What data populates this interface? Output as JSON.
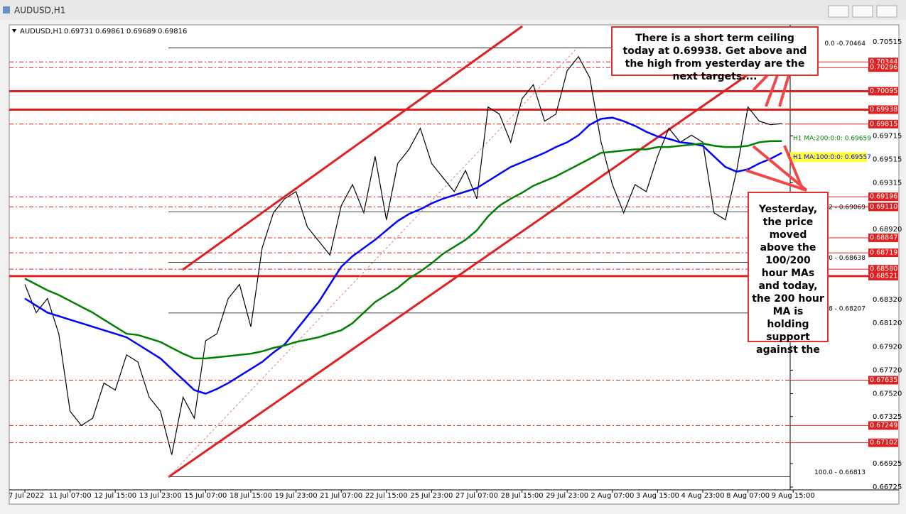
{
  "chart_data": {
    "type": "line",
    "window_title": "AUDUSD,H1",
    "symbol": "AUDUSD,H1",
    "ohlc": [
      0.69731,
      0.69861,
      0.69689,
      0.69816
    ],
    "categories": [
      "7 Jul 2022",
      null,
      null,
      null,
      "11 Jul 07:00",
      null,
      null,
      null,
      "12 Jul 15:00",
      null,
      null,
      null,
      "13 Jul 23:00",
      null,
      null,
      null,
      "15 Jul 07:00",
      null,
      null,
      null,
      "18 Jul 15:00",
      null,
      null,
      null,
      "19 Jul 23:00",
      null,
      null,
      null,
      "21 Jul 07:00",
      null,
      null,
      null,
      "22 Jul 15:00",
      null,
      null,
      null,
      "25 Jul 23:00",
      null,
      null,
      null,
      "27 Jul 07:00",
      null,
      null,
      null,
      "28 Jul 15:00",
      null,
      null,
      null,
      "29 Jul 23:00",
      null,
      null,
      null,
      "2 Aug 07:00",
      null,
      null,
      null,
      "3 Aug 15:00",
      null,
      null,
      null,
      "4 Aug 23:00",
      null,
      null,
      null,
      "8 Aug 07:00",
      null,
      null,
      null,
      "9 Aug 15:00",
      null
    ],
    "series": [
      {
        "name": "AUDUSD,H1",
        "color": "#000000",
        "values": [
          0.6845,
          0.6821,
          0.6833,
          0.6803,
          0.6737,
          0.6725,
          0.6731,
          0.6761,
          0.6755,
          0.6785,
          0.6779,
          0.6749,
          0.6737,
          0.67,
          0.6749,
          0.6731,
          0.6797,
          0.6803,
          0.6833,
          0.6845,
          0.6809,
          0.6876,
          0.6906,
          0.6918,
          0.6924,
          0.6894,
          0.6882,
          0.687,
          0.6912,
          0.693,
          0.6906,
          0.6954,
          0.69,
          0.6948,
          0.696,
          0.6978,
          0.6948,
          0.6936,
          0.6924,
          0.6942,
          0.6918,
          0.6996,
          0.699,
          0.6966,
          0.7003,
          0.7015,
          0.6984,
          0.699,
          0.7027,
          0.7039,
          0.7021,
          0.6966,
          0.693,
          0.6906,
          0.693,
          0.6924,
          0.6954,
          0.6978,
          0.6966,
          0.6972,
          0.6966,
          0.6906,
          0.69,
          0.6942,
          0.6996,
          0.6984,
          0.6981,
          0.6982,
          null,
          null
        ]
      },
      {
        "name": "H1 MA:100:0:0: 0.69557",
        "color": "#0000ff",
        "values": [
          0.6833,
          0.6827,
          0.6821,
          0.6818,
          0.6815,
          0.6812,
          0.6809,
          0.6806,
          0.6803,
          0.68,
          0.6794,
          0.6788,
          0.6782,
          0.6773,
          0.6764,
          0.6755,
          0.6752,
          0.6756,
          0.6761,
          0.6767,
          0.6773,
          0.6779,
          0.6787,
          0.6794,
          0.6806,
          0.6818,
          0.683,
          0.6845,
          0.686,
          0.6869,
          0.6876,
          0.6883,
          0.6891,
          0.6899,
          0.6905,
          0.6909,
          0.6914,
          0.6918,
          0.6921,
          0.6924,
          0.6927,
          0.6933,
          0.6939,
          0.6945,
          0.6949,
          0.6953,
          0.6957,
          0.6962,
          0.6966,
          0.6972,
          0.6981,
          0.6986,
          0.6987,
          0.6984,
          0.698,
          0.6975,
          0.6971,
          0.6969,
          0.6966,
          0.6965,
          0.6963,
          0.6954,
          0.6945,
          0.6941,
          0.6943,
          0.6948,
          0.6952,
          0.6957,
          null,
          null
        ]
      },
      {
        "name": "H1 MA:200:0:0: 0.69659",
        "color": "#008000",
        "values": [
          0.685,
          0.6845,
          0.684,
          0.6836,
          0.6831,
          0.6826,
          0.6821,
          0.6815,
          0.6809,
          0.6803,
          0.6802,
          0.6799,
          0.6796,
          0.6791,
          0.6786,
          0.6782,
          0.6782,
          0.6783,
          0.6784,
          0.6785,
          0.6786,
          0.6788,
          0.6791,
          0.6793,
          0.6796,
          0.6798,
          0.68,
          0.6803,
          0.6806,
          0.6812,
          0.6821,
          0.683,
          0.6836,
          0.6842,
          0.685,
          0.6856,
          0.6863,
          0.6871,
          0.6877,
          0.6883,
          0.6891,
          0.6903,
          0.6912,
          0.6918,
          0.6923,
          0.6929,
          0.6933,
          0.6937,
          0.6942,
          0.6947,
          0.6952,
          0.6957,
          0.6958,
          0.6959,
          0.696,
          0.696,
          0.6962,
          0.6962,
          0.6963,
          0.6964,
          0.6965,
          0.6963,
          0.6962,
          0.6962,
          0.6963,
          0.6966,
          0.6967,
          0.6967,
          null,
          null
        ]
      }
    ],
    "ylim": [
      0.66701,
      0.7066
    ],
    "yticks": [
      0.70515,
      0.69715,
      0.69515,
      0.69315,
      {
        "value": 0.6892,
        "label": "0.68920"
      },
      {
        "value": 0.6832,
        "label": "0.68320"
      },
      {
        "value": 0.6812,
        "label": "0.68120"
      },
      {
        "value": 0.6792,
        "label": "0.67920"
      },
      {
        "value": 0.6772,
        "label": "0.67720"
      },
      {
        "value": 0.6752,
        "label": "0.67520"
      },
      0.67325,
      0.66925,
      0.66725
    ],
    "levels": [
      {
        "value": 0.70344,
        "label": "0.70344",
        "style": "dashed"
      },
      {
        "value": 0.70296,
        "label": "0.70296",
        "style": "dashed"
      },
      {
        "value": 0.70095,
        "label": "0.70095",
        "style": "thick"
      },
      {
        "value": 0.69938,
        "label": "0.69938",
        "style": "thick"
      },
      {
        "value": 0.69815,
        "label": "0.69815",
        "style": "dashed"
      },
      {
        "value": 0.69196,
        "label": "0.69196",
        "style": "dashed"
      },
      {
        "value": 0.6911,
        "label": "0.69110",
        "style": "dashed"
      },
      {
        "value": 0.68847,
        "label": "0.68847",
        "style": "dashed"
      },
      {
        "value": 0.68719,
        "label": "0.68719",
        "style": "dashed"
      },
      {
        "value": 0.6858,
        "label": "0.68580",
        "style": "dashed"
      },
      {
        "value": 0.68521,
        "label": "0.68521",
        "style": "thick"
      },
      {
        "value": 0.67635,
        "label": "0.67635",
        "style": "dashed"
      },
      {
        "value": 0.67249,
        "label": "0.67249",
        "style": "dashed"
      },
      {
        "value": 0.67102,
        "label": "0.67102",
        "style": "dashed"
      }
    ],
    "fib": [
      {
        "value": 0.70464,
        "label": "0.0 -0.70464"
      },
      {
        "value": 0.69069,
        "label": ".2 - 0.69069"
      },
      {
        "value": 0.68638,
        "label": ".0 - 0.68638"
      },
      {
        "value": 0.68207,
        "label": ".8 - 0.68207"
      },
      {
        "value": 0.66813,
        "label": "100.0 - 0.66813"
      }
    ],
    "annotations": [
      "There is a short term ceiling today at 0.69938. Get above and the high from yesterday are the next targets....",
      "Yesterday, the price moved above the 100/200 hour MAs and today, the 200 hour MA is holding support against the"
    ]
  }
}
